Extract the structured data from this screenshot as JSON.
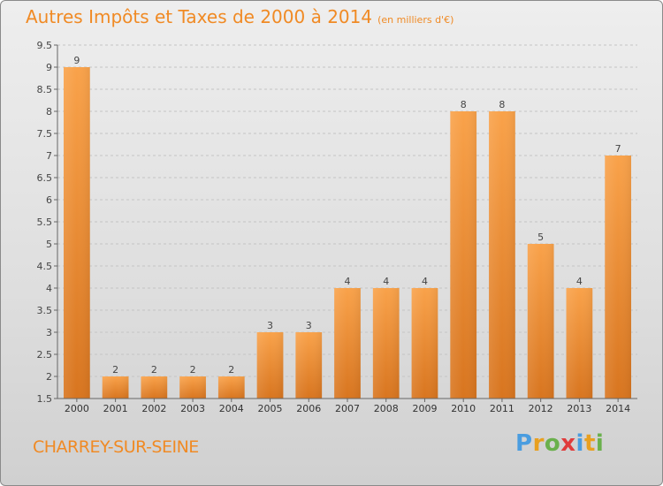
{
  "header": {
    "title": "Autres Impôts et Taxes de 2000 à 2014",
    "unit": "(en milliers d'€)"
  },
  "footer": {
    "town": "CHARREY-SUR-SEINE",
    "logo": {
      "text": "Proxiti",
      "letters": [
        "P",
        "r",
        "o",
        "x",
        "i",
        "t",
        "i"
      ],
      "colors": [
        "#4a9de0",
        "#e8a020",
        "#6ab04c",
        "#e03c3c",
        "#4a9de0",
        "#e8a020",
        "#6ab04c"
      ]
    }
  },
  "colors": {
    "bar_top": "#f9a24a",
    "bar_bottom": "#d8751f",
    "accent": "#f08a24",
    "grid": "#c4c4c4"
  },
  "chart_data": {
    "type": "bar",
    "title": "Autres Impôts et Taxes de 2000 à 2014",
    "subtitle": "(en milliers d'€)",
    "xlabel": "",
    "ylabel": "",
    "categories": [
      "2000",
      "2001",
      "2002",
      "2003",
      "2004",
      "2005",
      "2006",
      "2007",
      "2008",
      "2009",
      "2010",
      "2011",
      "2012",
      "2013",
      "2014"
    ],
    "values": [
      9,
      2,
      2,
      2,
      2,
      3,
      3,
      4,
      4,
      4,
      8,
      8,
      5,
      4,
      7
    ],
    "ylim": [
      1.5,
      9.5
    ],
    "yticks": [
      "1.5",
      "2",
      "2.5",
      "3",
      "3.5",
      "4",
      "4.5",
      "5",
      "5.5",
      "6",
      "6.5",
      "7",
      "7.5",
      "8",
      "8.5",
      "9",
      "9.5"
    ],
    "grid": true,
    "legend": "none"
  }
}
